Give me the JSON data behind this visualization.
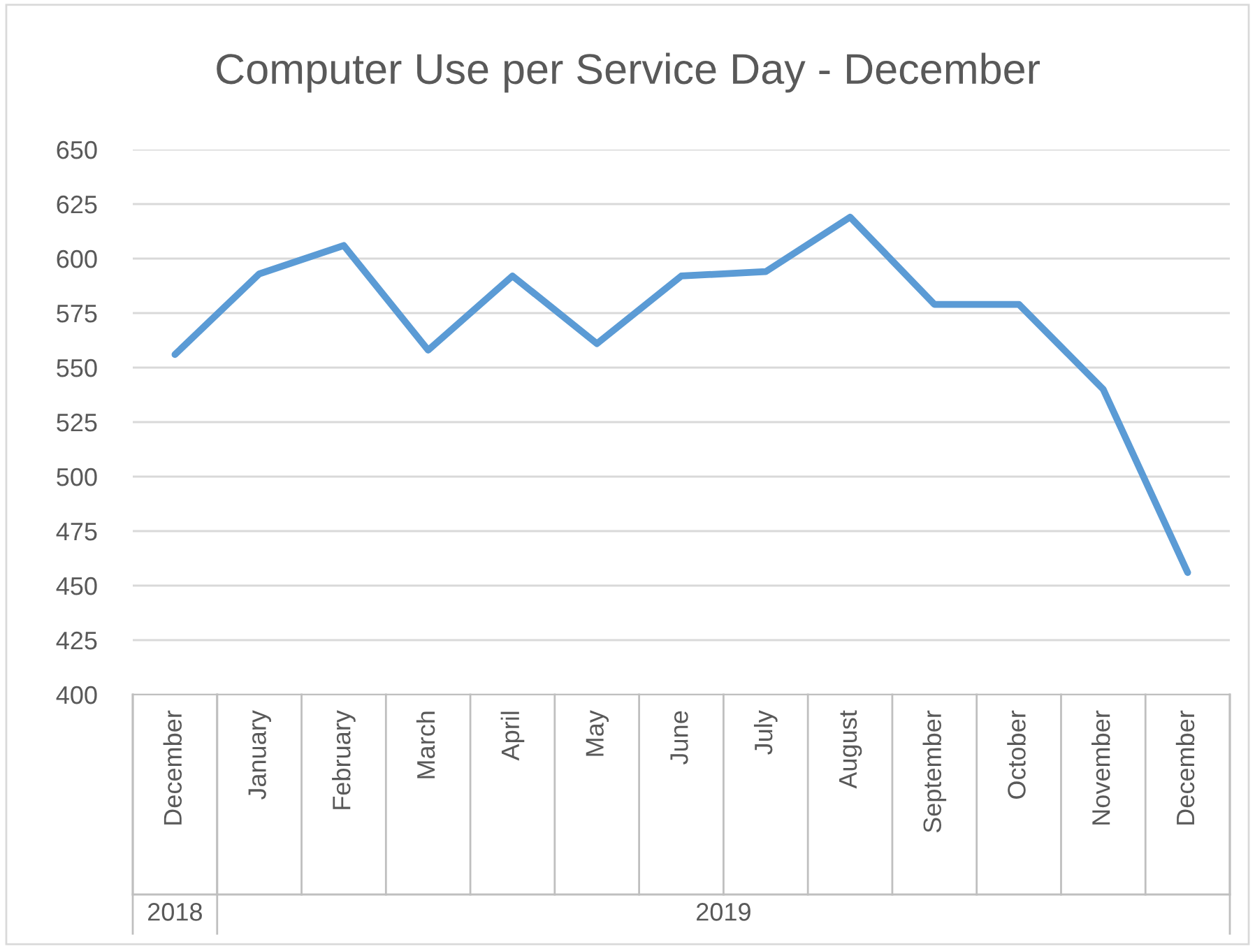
{
  "chart_data": {
    "type": "line",
    "title": "Computer Use per Service Day - December",
    "categories": [
      "December",
      "January",
      "February",
      "March",
      "April",
      "May",
      "June",
      "July",
      "August",
      "September",
      "October",
      "November",
      "December"
    ],
    "series": [
      {
        "color": "#5b9bd5",
        "values": [
          556,
          593,
          606,
          558,
          592,
          561,
          592,
          594,
          619,
          579,
          579,
          540,
          456
        ]
      }
    ],
    "annotations": [
      "2018",
      "2019"
    ],
    "ylim": [
      400,
      650
    ],
    "yticks": [
      400,
      425,
      450,
      475,
      500,
      525,
      550,
      575,
      600,
      625,
      650
    ],
    "grid": "y",
    "legend": false,
    "marker": "none",
    "line_style": "solid"
  }
}
